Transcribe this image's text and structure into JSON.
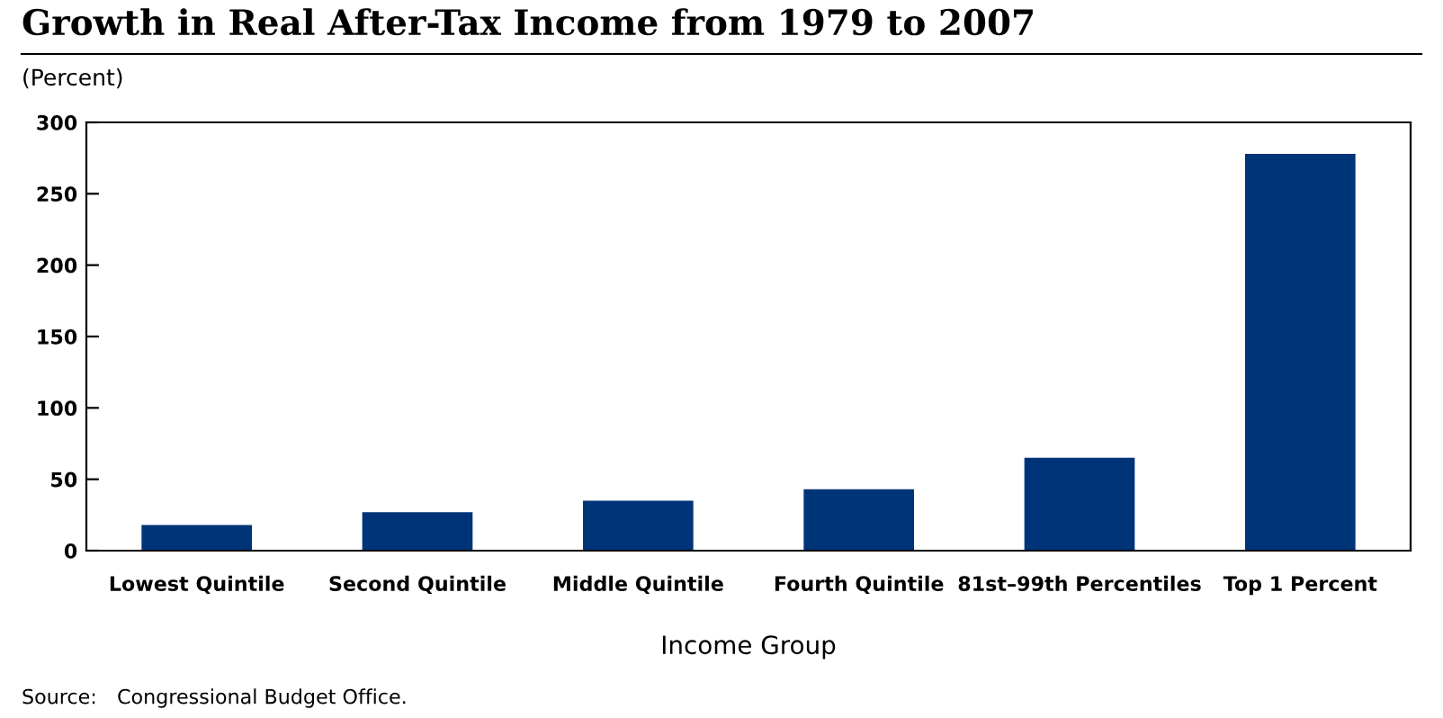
{
  "chart_data": {
    "type": "bar",
    "title": "Growth in Real After-Tax Income from 1979 to 2007",
    "ylabel": "(Percent)",
    "xlabel": "Income Group",
    "categories": [
      "Lowest Quintile",
      "Second Quintile",
      "Middle Quintile",
      "Fourth Quintile",
      "81st–99th Percentiles",
      "Top 1 Percent"
    ],
    "values": [
      18,
      27,
      35,
      43,
      65,
      278
    ],
    "color": "#003478",
    "ylim": [
      0,
      300
    ],
    "yticks": [
      0,
      50,
      100,
      150,
      200,
      250,
      300
    ],
    "grid": false,
    "annotations": [
      "Source: Congressional Budget Office."
    ]
  }
}
